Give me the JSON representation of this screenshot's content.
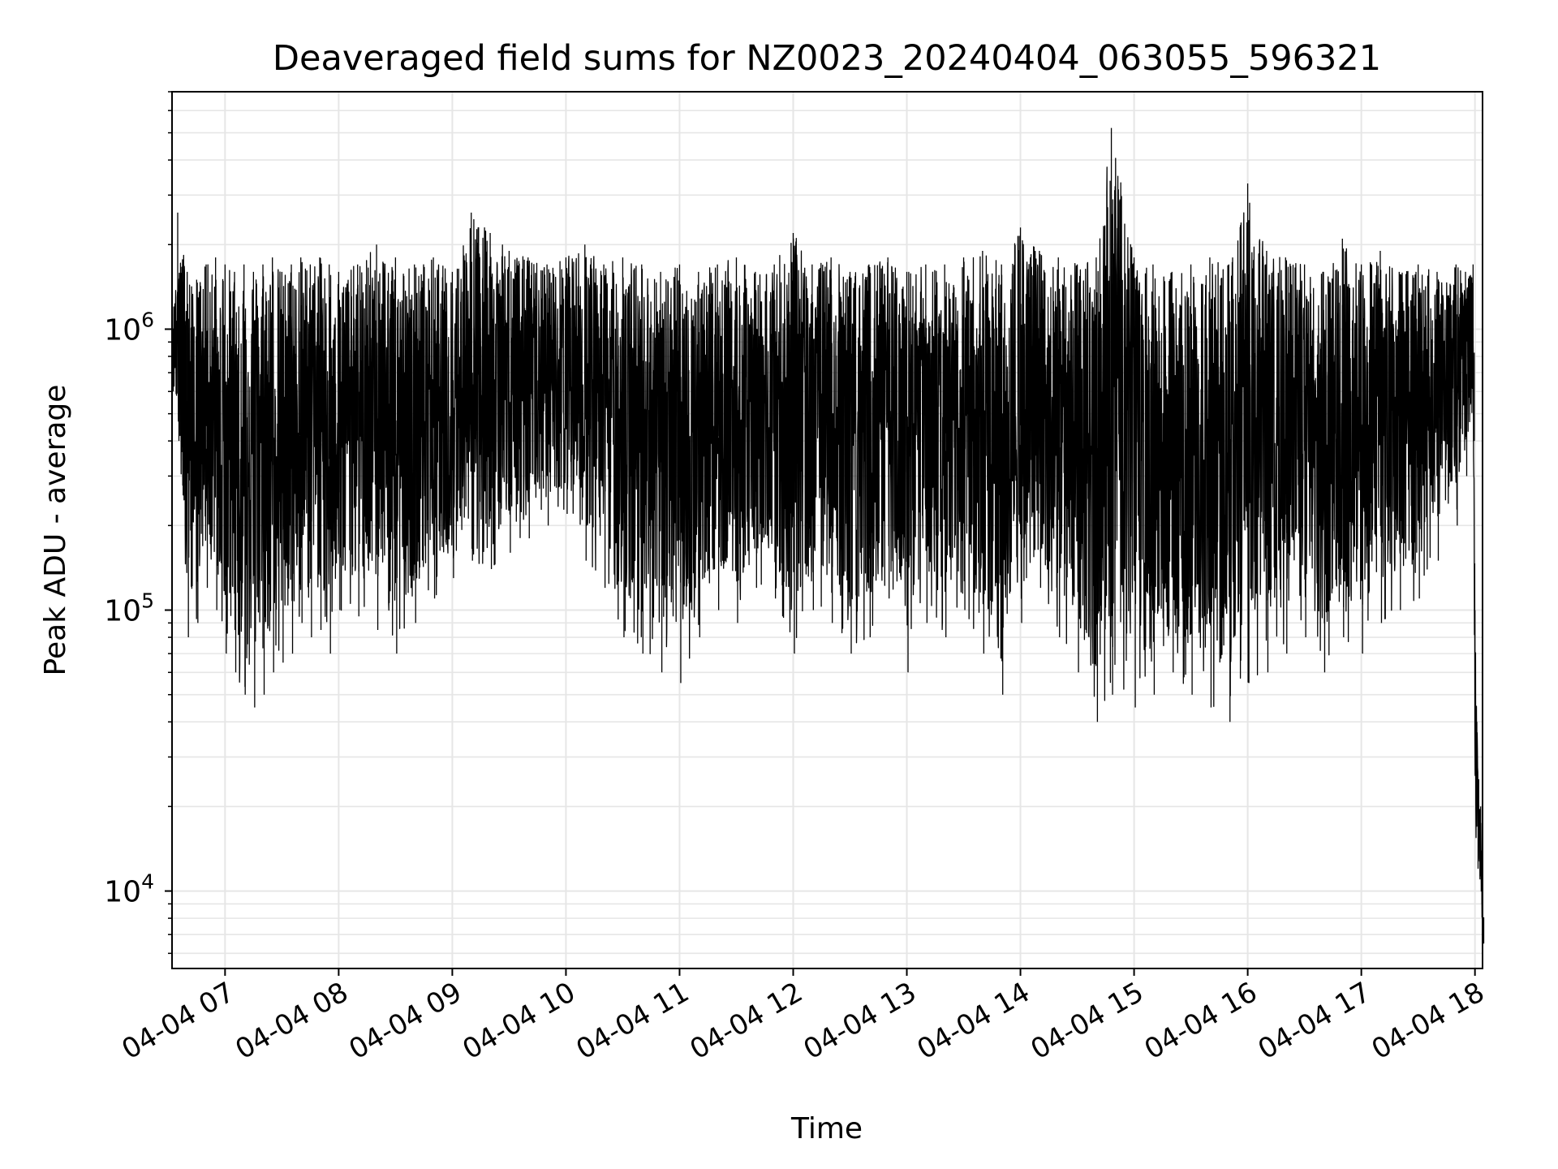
{
  "chart_data": {
    "type": "line",
    "title": "Deaveraged field sums for NZ0023_20240404_063055_596321",
    "xlabel": "Time",
    "ylabel": "Peak ADU - average",
    "yscale": "log",
    "ylim": [
      5300,
      7000000
    ],
    "xlim": [
      "2024-04-04 06:32",
      "2024-04-04 18:04"
    ],
    "grid": true,
    "line_color": "#000000",
    "grid_color": "#e6e6e6",
    "x_ticks": [
      {
        "value": "2024-04-04 07:00",
        "label": "04-04 07"
      },
      {
        "value": "2024-04-04 08:00",
        "label": "04-04 08"
      },
      {
        "value": "2024-04-04 09:00",
        "label": "04-04 09"
      },
      {
        "value": "2024-04-04 10:00",
        "label": "04-04 10"
      },
      {
        "value": "2024-04-04 11:00",
        "label": "04-04 11"
      },
      {
        "value": "2024-04-04 12:00",
        "label": "04-04 12"
      },
      {
        "value": "2024-04-04 13:00",
        "label": "04-04 13"
      },
      {
        "value": "2024-04-04 14:00",
        "label": "04-04 14"
      },
      {
        "value": "2024-04-04 15:00",
        "label": "04-04 15"
      },
      {
        "value": "2024-04-04 16:00",
        "label": "04-04 16"
      },
      {
        "value": "2024-04-04 17:00",
        "label": "04-04 17"
      },
      {
        "value": "2024-04-04 18:00",
        "label": "04-04 18"
      }
    ],
    "y_ticks": [
      {
        "value": 10000,
        "base": "10",
        "exp": "4"
      },
      {
        "value": 100000,
        "base": "10",
        "exp": "5"
      },
      {
        "value": 1000000,
        "base": "10",
        "exp": "6"
      }
    ],
    "series": [
      {
        "x": [
          "2024-04-04 06:32",
          "2024-04-04 06:35",
          "2024-04-04 06:40",
          "2024-04-04 06:45",
          "2024-04-04 06:50",
          "2024-04-04 06:55",
          "2024-04-04 07:00",
          "2024-04-04 07:05",
          "2024-04-04 07:10",
          "2024-04-04 07:15",
          "2024-04-04 07:20",
          "2024-04-04 07:25",
          "2024-04-04 07:30",
          "2024-04-04 07:35",
          "2024-04-04 07:40",
          "2024-04-04 07:45",
          "2024-04-04 07:50",
          "2024-04-04 07:55",
          "2024-04-04 08:00",
          "2024-04-04 08:10",
          "2024-04-04 08:20",
          "2024-04-04 08:30",
          "2024-04-04 08:40",
          "2024-04-04 08:50",
          "2024-04-04 09:00",
          "2024-04-04 09:10",
          "2024-04-04 09:20",
          "2024-04-04 09:30",
          "2024-04-04 09:40",
          "2024-04-04 09:50",
          "2024-04-04 10:00",
          "2024-04-04 10:10",
          "2024-04-04 10:20",
          "2024-04-04 10:30",
          "2024-04-04 10:40",
          "2024-04-04 10:50",
          "2024-04-04 11:00",
          "2024-04-04 11:10",
          "2024-04-04 11:20",
          "2024-04-04 11:30",
          "2024-04-04 11:40",
          "2024-04-04 11:50",
          "2024-04-04 12:00",
          "2024-04-04 12:10",
          "2024-04-04 12:20",
          "2024-04-04 12:30",
          "2024-04-04 12:40",
          "2024-04-04 12:50",
          "2024-04-04 13:00",
          "2024-04-04 13:10",
          "2024-04-04 13:20",
          "2024-04-04 13:30",
          "2024-04-04 13:40",
          "2024-04-04 13:50",
          "2024-04-04 14:00",
          "2024-04-04 14:10",
          "2024-04-04 14:20",
          "2024-04-04 14:30",
          "2024-04-04 14:40",
          "2024-04-04 14:48",
          "2024-04-04 15:00",
          "2024-04-04 15:10",
          "2024-04-04 15:20",
          "2024-04-04 15:30",
          "2024-04-04 15:40",
          "2024-04-04 15:50",
          "2024-04-04 16:00",
          "2024-04-04 16:10",
          "2024-04-04 16:20",
          "2024-04-04 16:30",
          "2024-04-04 16:40",
          "2024-04-04 16:50",
          "2024-04-04 17:00",
          "2024-04-04 17:10",
          "2024-04-04 17:20",
          "2024-04-04 17:30",
          "2024-04-04 17:40",
          "2024-04-04 17:50",
          "2024-04-04 17:55",
          "2024-04-04 17:59",
          "2024-04-04 18:00",
          "2024-04-04 18:01",
          "2024-04-04 18:02",
          "2024-04-04 18:03",
          "2024-04-04 18:04"
        ],
        "high": [
          900000,
          2600000,
          1600000,
          1500000,
          1700000,
          1800000,
          1700000,
          1600000,
          1700000,
          1600000,
          1700000,
          1800000,
          1600000,
          1700000,
          1800000,
          1700000,
          1800000,
          1700000,
          1600000,
          1700000,
          2000000,
          1800000,
          1700000,
          1800000,
          1600000,
          2600000,
          2200000,
          1900000,
          1800000,
          1700000,
          1800000,
          2000000,
          1700000,
          1800000,
          1700000,
          1600000,
          1700000,
          1600000,
          1700000,
          1800000,
          1600000,
          1700000,
          2200000,
          1700000,
          1800000,
          1600000,
          1700000,
          1800000,
          1600000,
          1700000,
          1700000,
          1800000,
          1900000,
          1700000,
          2300000,
          1900000,
          1800000,
          1700000,
          1800000,
          5200000,
          1800000,
          1700000,
          1600000,
          1700000,
          1800000,
          1700000,
          3300000,
          1900000,
          1800000,
          1700000,
          1600000,
          2100000,
          1700000,
          1900000,
          1600000,
          1700000,
          1600000,
          1700000,
          1600000,
          1700000,
          100000,
          40000,
          25000,
          20000,
          10000
        ],
        "low": [
          600000,
          400000,
          80000,
          90000,
          120000,
          100000,
          70000,
          60000,
          50000,
          45000,
          50000,
          60000,
          65000,
          70000,
          90000,
          80000,
          85000,
          70000,
          100000,
          95000,
          85000,
          70000,
          90000,
          110000,
          130000,
          150000,
          140000,
          160000,
          180000,
          200000,
          220000,
          150000,
          120000,
          80000,
          70000,
          60000,
          55000,
          80000,
          100000,
          90000,
          120000,
          110000,
          70000,
          100000,
          90000,
          70000,
          80000,
          110000,
          60000,
          90000,
          80000,
          100000,
          70000,
          50000,
          90000,
          120000,
          80000,
          60000,
          40000,
          50000,
          45000,
          50000,
          60000,
          50000,
          45000,
          40000,
          55000,
          60000,
          70000,
          80000,
          60000,
          80000,
          70000,
          90000,
          100000,
          110000,
          150000,
          200000,
          300000,
          400000,
          20000,
          12000,
          11000,
          9000,
          6500
        ]
      }
    ]
  }
}
